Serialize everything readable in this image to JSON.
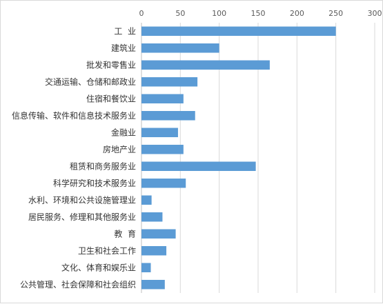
{
  "chart_data": {
    "type": "bar",
    "orientation": "horizontal",
    "title": "",
    "xlabel": "",
    "ylabel": "",
    "xlim": [
      0,
      300
    ],
    "x_ticks": [
      0,
      50,
      100,
      150,
      200,
      250,
      300
    ],
    "x_axis_position": "top",
    "grid": true,
    "legend": "none",
    "bar_color": "#5b9bd5",
    "categories": [
      "工  业",
      "建筑业",
      "批发和零售业",
      "交通运输、仓储和邮政业",
      "住宿和餐饮业",
      "信息传输、软件和信息技术服务业",
      "金融业",
      "房地产业",
      "租赁和商务服务业",
      "科学研究和技术服务业",
      "水利、环境和公共设施管理业",
      "居民服务、修理和其他服务业",
      "教  育",
      "卫生和社会工作",
      "文化、体育和娱乐业",
      "公共管理、社会保障和社会组织"
    ],
    "values": [
      250,
      100,
      165,
      72,
      54,
      69,
      47,
      54,
      147,
      57,
      13,
      27,
      44,
      32,
      12,
      30
    ]
  }
}
